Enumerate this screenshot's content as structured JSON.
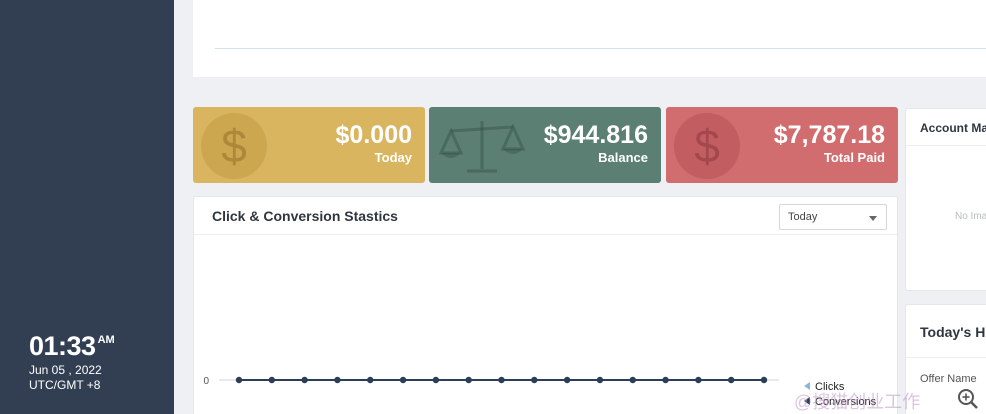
{
  "sidebar": {
    "clock": {
      "time": "01:33",
      "ampm": "AM",
      "date": "Jun 05 , 2022",
      "timezone": "UTC/GMT +8"
    }
  },
  "stats": [
    {
      "amount": "$0.000",
      "label": "Today",
      "icon": "dollar-coin-icon"
    },
    {
      "amount": "$944.816",
      "label": "Balance",
      "icon": "scale-icon"
    },
    {
      "amount": "$7,787.18",
      "label": "Total Paid",
      "icon": "dollar-coin-icon"
    }
  ],
  "chart_card": {
    "title": "Click & Conversion Stastics",
    "filter": {
      "selected": "Today"
    }
  },
  "chart_data": {
    "type": "line",
    "y_tick_labels": [
      "0"
    ],
    "series": [
      {
        "name": "Clicks",
        "values": [
          0,
          0,
          0,
          0,
          0,
          0,
          0,
          0,
          0,
          0,
          0,
          0,
          0,
          0,
          0,
          0,
          0
        ],
        "color": "#90b4d6"
      },
      {
        "name": "Conversions",
        "values": [
          0,
          0,
          0,
          0,
          0,
          0,
          0,
          0,
          0,
          0,
          0,
          0,
          0,
          0,
          0,
          0,
          0
        ],
        "color": "#2c3e55"
      }
    ],
    "legend_position": "bottom-right"
  },
  "account_card": {
    "title": "Account Ma",
    "placeholder": "No Ima"
  },
  "history_card": {
    "title": "Today's Hi",
    "column": "Offer Name"
  },
  "watermark": {
    "text": "@搜猫创业工作"
  },
  "colors": {
    "sidebar": "#323f52",
    "today": "#d9b560",
    "balance": "#5b7f72",
    "total_paid": "#d16d6e"
  }
}
